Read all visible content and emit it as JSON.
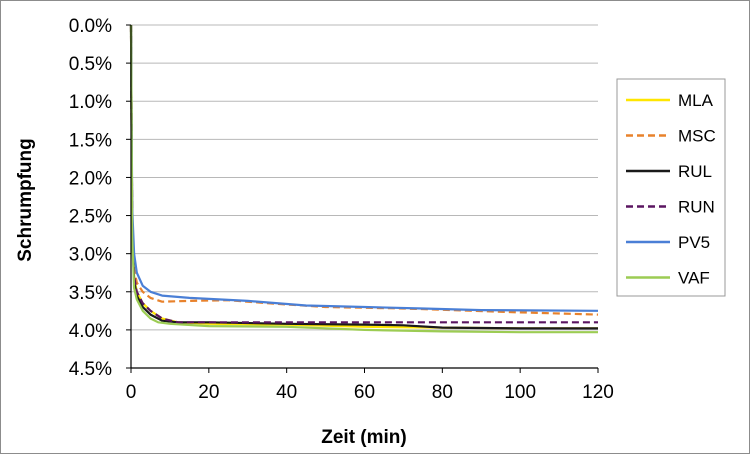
{
  "chart_data": {
    "type": "line",
    "xlabel": "Zeit (min)",
    "ylabel": "Schrumpfung",
    "xlim": [
      0,
      120
    ],
    "ylim": [
      0,
      4.5
    ],
    "y_inverted": true,
    "x_ticks": [
      "0",
      "20",
      "40",
      "60",
      "80",
      "100",
      "120"
    ],
    "y_ticks": [
      "0.0%",
      "0.5%",
      "1.0%",
      "1.5%",
      "2.0%",
      "2.5%",
      "3.0%",
      "3.5%",
      "4.0%",
      "4.5%"
    ],
    "grid": "horizontal",
    "legend_position": "right",
    "series": [
      {
        "name": "MLA",
        "color": "#ffe600",
        "dash": "solid",
        "x": [
          0,
          0.3,
          0.8,
          1.5,
          3,
          5,
          8,
          12,
          20,
          40,
          60,
          80,
          100,
          120
        ],
        "y": [
          0,
          2.6,
          3.3,
          3.5,
          3.65,
          3.75,
          3.85,
          3.9,
          3.92,
          3.93,
          3.96,
          3.97,
          3.98,
          3.98
        ]
      },
      {
        "name": "MSC",
        "color": "#e8822c",
        "dash": "dashed",
        "x": [
          0,
          0.3,
          0.8,
          1.5,
          3,
          5,
          8,
          15,
          25,
          35,
          50,
          70,
          100,
          120
        ],
        "y": [
          0,
          2.6,
          3.2,
          3.38,
          3.5,
          3.58,
          3.63,
          3.62,
          3.61,
          3.65,
          3.7,
          3.72,
          3.77,
          3.8
        ]
      },
      {
        "name": "RUL",
        "color": "#1a1a1a",
        "dash": "solid",
        "x": [
          0,
          0.3,
          0.8,
          1.5,
          3,
          5,
          8,
          12,
          20,
          40,
          60,
          70,
          80,
          100,
          120
        ],
        "y": [
          0,
          2.7,
          3.35,
          3.55,
          3.7,
          3.8,
          3.88,
          3.9,
          3.9,
          3.92,
          3.93,
          3.94,
          3.97,
          3.98,
          3.98
        ]
      },
      {
        "name": "RUN",
        "color": "#5a1560",
        "dash": "dashed",
        "x": [
          0,
          0.3,
          0.8,
          1.5,
          3,
          5,
          8,
          12,
          20,
          40,
          60,
          80,
          100,
          120
        ],
        "y": [
          0,
          2.7,
          3.3,
          3.5,
          3.65,
          3.75,
          3.85,
          3.9,
          3.9,
          3.9,
          3.9,
          3.9,
          3.9,
          3.9
        ]
      },
      {
        "name": "PV5",
        "color": "#4a7fd6",
        "dash": "solid",
        "x": [
          0,
          0.3,
          0.8,
          1.5,
          3,
          5,
          8,
          15,
          30,
          45,
          60,
          75,
          90,
          120
        ],
        "y": [
          0,
          2.4,
          3.0,
          3.25,
          3.42,
          3.5,
          3.55,
          3.58,
          3.62,
          3.68,
          3.7,
          3.72,
          3.74,
          3.75
        ]
      },
      {
        "name": "VAF",
        "color": "#9ccc53",
        "dash": "solid",
        "x": [
          0,
          0.3,
          0.8,
          1.5,
          3,
          5,
          7,
          10,
          20,
          40,
          60,
          80,
          100,
          120
        ],
        "y": [
          0,
          2.8,
          3.45,
          3.6,
          3.75,
          3.85,
          3.9,
          3.92,
          3.95,
          3.96,
          4.0,
          4.02,
          4.03,
          4.03
        ]
      }
    ]
  }
}
